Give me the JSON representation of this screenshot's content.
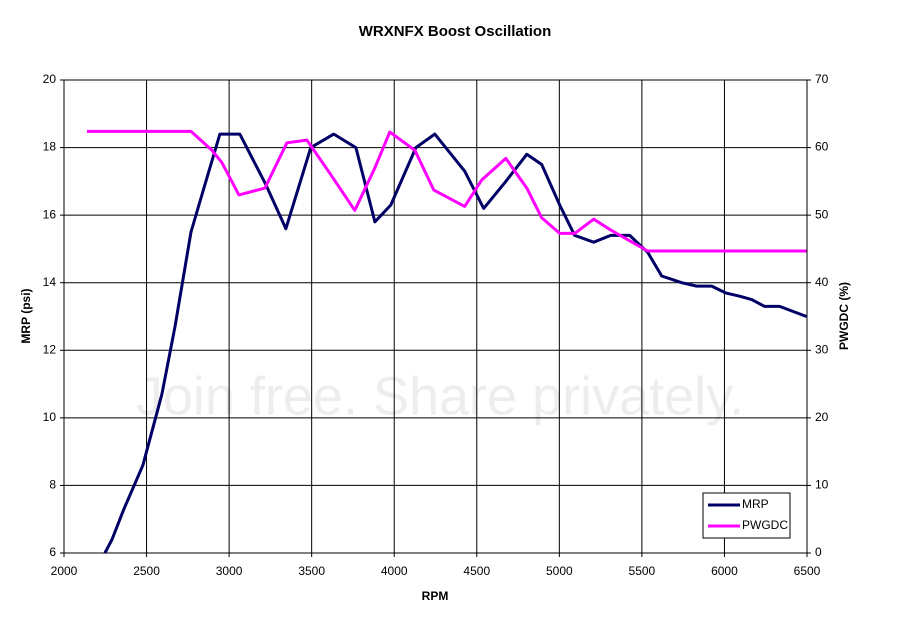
{
  "chart_data": {
    "type": "line",
    "title": "WRXNFX Boost Oscillation",
    "x_label": "RPM",
    "y_label": "MRP (psi)",
    "y2_label": "PWGDC (%)",
    "watermark": "Join free. Share privately.",
    "xlim": [
      2000,
      6500
    ],
    "xticks": [
      2000,
      2500,
      3000,
      3500,
      4000,
      4500,
      5000,
      5500,
      6000,
      6500
    ],
    "ylim": [
      6,
      20
    ],
    "yticks": [
      6,
      8,
      10,
      12,
      14,
      16,
      18,
      20
    ],
    "y2lim": [
      0,
      70
    ],
    "y2ticks": [
      0,
      10,
      20,
      30,
      40,
      50,
      60,
      70
    ],
    "grid": true,
    "legend": "lower right",
    "series": [
      {
        "name": "MRP",
        "color": "#000066",
        "axis": "y",
        "x": [
          2248,
          2291,
          2363,
          2478,
          2593,
          2672,
          2769,
          2841,
          2944,
          3065,
          3223,
          3344,
          3495,
          3634,
          3768,
          3883,
          3979,
          4131,
          4246,
          4427,
          4542,
          4676,
          4803,
          4893,
          5002,
          5093,
          5208,
          5311,
          5426,
          5535,
          5620,
          5741,
          5832,
          5923,
          6007,
          6092,
          6165,
          6243,
          6334,
          6497
        ],
        "values": [
          6.0,
          6.4,
          7.3,
          8.6,
          10.7,
          12.7,
          15.5,
          16.7,
          18.4,
          18.4,
          16.9,
          15.6,
          18.0,
          18.4,
          18.0,
          15.8,
          16.3,
          18.0,
          18.4,
          17.3,
          16.2,
          17.0,
          17.8,
          17.5,
          16.3,
          15.4,
          15.2,
          15.4,
          15.4,
          14.9,
          14.2,
          14.0,
          13.9,
          13.9,
          13.7,
          13.6,
          13.5,
          13.3,
          13.3,
          13.0
        ]
      },
      {
        "name": "PWGDC",
        "color": "#ff00ff",
        "axis": "y2",
        "x": [
          2139,
          2769,
          2896,
          2956,
          3059,
          3217,
          3350,
          3471,
          3610,
          3761,
          3883,
          3973,
          4125,
          4240,
          4427,
          4530,
          4676,
          4803,
          4893,
          5002,
          5093,
          5208,
          5311,
          5535,
          6497
        ],
        "values": [
          62.4,
          62.4,
          59.6,
          57.8,
          53.0,
          54.0,
          60.7,
          61.1,
          56.2,
          50.7,
          57.0,
          62.3,
          59.6,
          53.7,
          51.3,
          55.2,
          58.4,
          54.0,
          49.6,
          47.3,
          47.3,
          49.4,
          47.8,
          44.7,
          44.7
        ]
      }
    ]
  }
}
